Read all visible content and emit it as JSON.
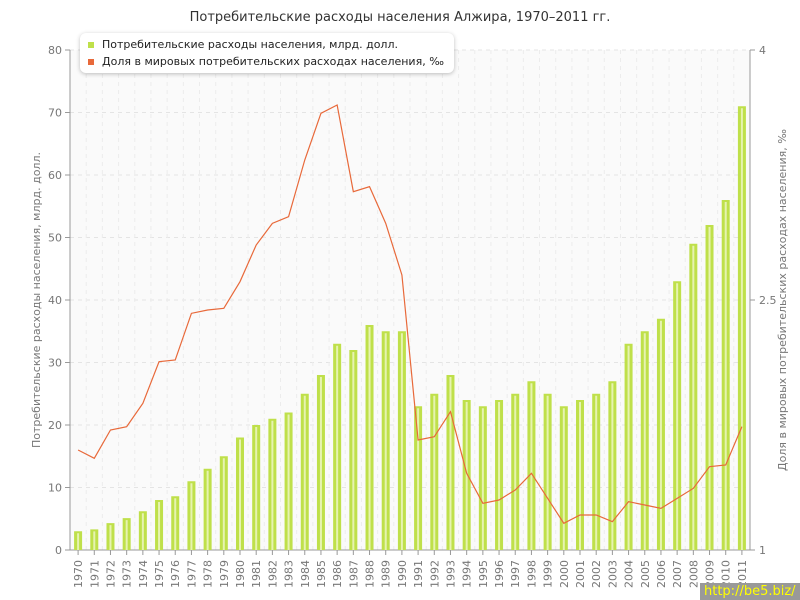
{
  "chart_data": {
    "type": "bar+line",
    "title": "Потребительские расходы населения Алжира, 1970–2011 гг.",
    "categories": [
      "1970",
      "1971",
      "1972",
      "1973",
      "1974",
      "1975",
      "1976",
      "1977",
      "1978",
      "1979",
      "1980",
      "1981",
      "1982",
      "1983",
      "1984",
      "1985",
      "1986",
      "1987",
      "1988",
      "1989",
      "1990",
      "1991",
      "1992",
      "1993",
      "1994",
      "1995",
      "1996",
      "1997",
      "1998",
      "1999",
      "2000",
      "2001",
      "2002",
      "2003",
      "2004",
      "2005",
      "2006",
      "2007",
      "2008",
      "2009",
      "2010",
      "2011"
    ],
    "series": [
      {
        "name": "Потребительские расходы населения, млрд. долл.",
        "type": "bar",
        "axis": "left",
        "color": "#bfe04a",
        "values": [
          3,
          3.3,
          4.3,
          5.1,
          6.2,
          8,
          8.6,
          11,
          13,
          15,
          18,
          20,
          21,
          22,
          25,
          28,
          33,
          32,
          36,
          35,
          35,
          23,
          25,
          28,
          24,
          23,
          24,
          25,
          27,
          25,
          23,
          24,
          25,
          27,
          33,
          35,
          37,
          43,
          49,
          52,
          56,
          71
        ]
      },
      {
        "name": "Доля в мировых потребительских расходах населения, ‰",
        "type": "line",
        "axis": "right",
        "color": "#e8693a",
        "values": [
          1.6,
          1.55,
          1.72,
          1.74,
          1.88,
          2.13,
          2.14,
          2.42,
          2.44,
          2.45,
          2.61,
          2.83,
          2.96,
          3.0,
          3.34,
          3.62,
          3.67,
          3.15,
          3.18,
          2.96,
          2.65,
          1.66,
          1.68,
          1.83,
          1.46,
          1.28,
          1.3,
          1.36,
          1.46,
          1.31,
          1.16,
          1.21,
          1.21,
          1.17,
          1.29,
          1.27,
          1.25,
          1.31,
          1.37,
          1.5,
          1.51,
          1.74
        ]
      }
    ],
    "ylabel": "Потребительские расходы населения, млрд. долл.",
    "y2label": "Доля в мировых потребительских расходах населения, ‰",
    "ylim": [
      0,
      80
    ],
    "yticks": [
      "0",
      "10",
      "20",
      "30",
      "40",
      "50",
      "60",
      "70",
      "80"
    ],
    "y2lim": [
      1,
      4
    ],
    "y2ticks": [
      "1",
      "2.5",
      "4"
    ],
    "grid": true,
    "legend": "top-left"
  },
  "watermark": "http://be5.biz/"
}
